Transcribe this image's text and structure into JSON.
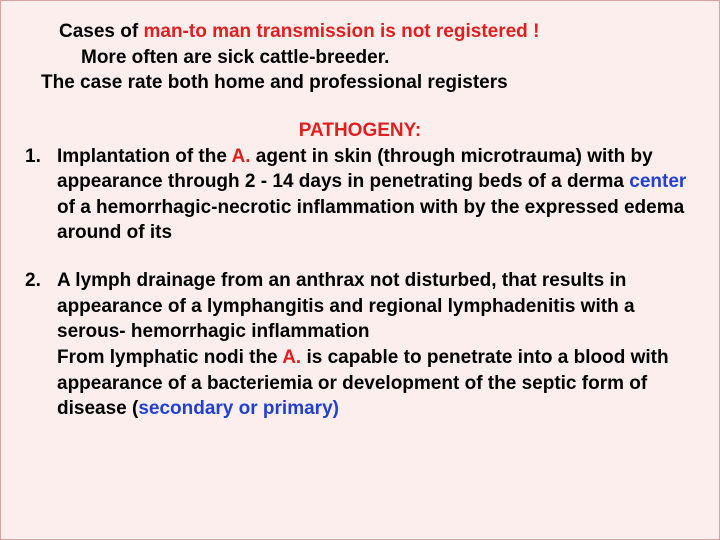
{
  "colors": {
    "background": "#fdeeee",
    "border": "#d9a0a0",
    "text": "#000000",
    "red": "#e02020",
    "blue": "#2040d0"
  },
  "typography": {
    "font_family": "Arial",
    "font_size_pt": 19,
    "font_weight": "bold",
    "line_height": 1.35
  },
  "intro": {
    "line1_a": "Cases of ",
    "line1_b": "man-to man transmission is not registered !",
    "line2": "More often are sick cattle-breeder.",
    "line3": "The case rate both home and professional registers"
  },
  "heading": "PATHOGENY:",
  "items": {
    "one_a": "Implantation of the ",
    "one_b": "A.",
    "one_c": " agent in skin (through microtrauma) with  by appearance through 2 - 14 days in penetrating beds of a derma ",
    "one_d": "center",
    "one_e": " of a hemorrhagic-necrotic inflammation with by the expressed edema around of its",
    "two": "A lymph drainage from an anthrax not disturbed, that results in appearance of a lymphangitis and regional lymphadenitis with a serous- hemorrhagic inflammation",
    "after_a": "From lymphatic nodi the ",
    "after_b": "A.",
    "after_c": " is capable to penetrate into a blood with appearance of a bacteriemia or development of the septic form of disease (",
    "after_d": "secondary or primary)"
  }
}
